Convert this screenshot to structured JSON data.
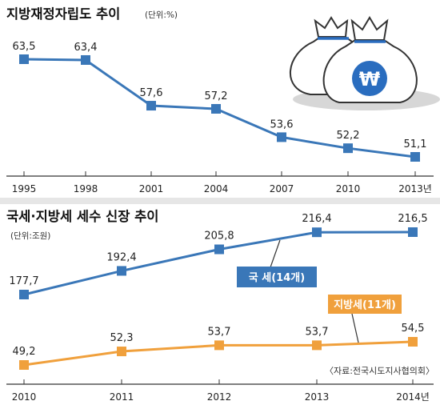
{
  "chart_data": [
    {
      "type": "line",
      "title": "지방재정자립도 추이",
      "unit": "(단위:%)",
      "x": [
        "1995",
        "1998",
        "2001",
        "2004",
        "2007",
        "2010",
        "2013년"
      ],
      "series": [
        {
          "name": "",
          "values": [
            63.5,
            63.4,
            57.6,
            57.2,
            53.6,
            52.2,
            51.1
          ],
          "labels": [
            "63,5",
            "63,4",
            "57,6",
            "57,2",
            "53,6",
            "52,2",
            "51,1"
          ],
          "color": "#3a77b8"
        }
      ],
      "ylim": [
        49,
        66
      ],
      "grid": false,
      "icon": "money-bags-won-icon",
      "icon_symbol": "₩"
    },
    {
      "type": "line",
      "title": "국세·지방세 세수 신장 추이",
      "unit": "(단위:조원)",
      "x": [
        "2010",
        "2011",
        "2012",
        "2013",
        "2014년"
      ],
      "series": [
        {
          "name": "국 세(14개)",
          "values": [
            177.7,
            192.4,
            205.8,
            216.4,
            216.5
          ],
          "labels": [
            "177,7",
            "192,4",
            "205,8",
            "216,4",
            "216,5"
          ],
          "color": "#3a77b8"
        },
        {
          "name": "지방세(11개)",
          "values": [
            49.2,
            52.3,
            53.7,
            53.7,
            54.5
          ],
          "labels": [
            "49,2",
            "52,3",
            "53,7",
            "53,7",
            "54,5"
          ],
          "color": "#f0a03c"
        }
      ],
      "source": "〈자료:전국시도지사협의회〉",
      "grid": false
    }
  ],
  "colors": {
    "blue": "#3a77b8",
    "orange": "#f0a03c",
    "axis": "#333333",
    "divider": "#e6e6e6"
  }
}
